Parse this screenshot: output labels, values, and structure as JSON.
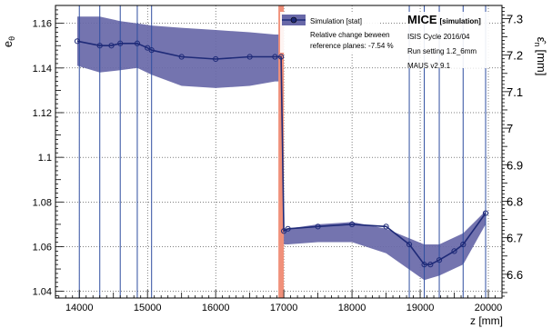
{
  "chart_data": {
    "type": "line",
    "xlabel": "z [mm]",
    "ylabel_left": "e_θ",
    "ylabel_left_parts": [
      "e",
      "θ"
    ],
    "ylabel_right": "ε̂_n [mm]",
    "ylabel_right_parts": [
      "ε̂",
      "n",
      "[mm]"
    ],
    "xlim": [
      13650,
      20200
    ],
    "ylim": [
      1.037,
      1.168
    ],
    "ylim_right": [
      6.535,
      7.336
    ],
    "x_ticks": [
      14000,
      15000,
      16000,
      17000,
      18000,
      19000,
      20000
    ],
    "x_tick_labels": [
      "14000",
      "15000",
      "16000",
      "17000",
      "18000",
      "19000",
      "20000"
    ],
    "y_ticks": [
      1.04,
      1.06,
      1.08,
      1.1,
      1.12,
      1.14,
      1.16
    ],
    "y_tick_labels": [
      "1.04",
      "1.06",
      "1.08",
      "1.1",
      "1.12",
      "1.14",
      "1.16"
    ],
    "y2_ticks": [
      6.6,
      6.7,
      6.8,
      6.9,
      7.0,
      7.1,
      7.2,
      7.3
    ],
    "y2_tick_labels": [
      "6.6",
      "6.7",
      "6.8",
      "6.9",
      "7",
      "7.1",
      "7.2",
      "7.3"
    ],
    "grid": true,
    "detector_planes": [
      14000,
      14300,
      14600,
      14850,
      15060,
      18840,
      19060,
      19280,
      19630,
      19960
    ],
    "absorber": {
      "z": 16960,
      "color": "#f0907a"
    },
    "band": {
      "color": "#6868a8",
      "x": [
        13970,
        14300,
        14600,
        14850,
        15060,
        15500,
        16000,
        16500,
        16870,
        16960,
        17000,
        17060,
        17500,
        18000,
        18500,
        19060,
        19280,
        19630,
        19960
      ],
      "upper": [
        1.163,
        1.163,
        1.161,
        1.16,
        1.159,
        1.158,
        1.157,
        1.156,
        1.155,
        1.155,
        1.068,
        1.068,
        1.07,
        1.071,
        1.068,
        1.061,
        1.061,
        1.066,
        1.076
      ],
      "lower": [
        1.141,
        1.138,
        1.139,
        1.14,
        1.137,
        1.132,
        1.131,
        1.132,
        1.134,
        1.134,
        1.061,
        1.061,
        1.062,
        1.062,
        1.057,
        1.045,
        1.047,
        1.052,
        1.07
      ]
    },
    "series": [
      {
        "name": "Simulation [stat]",
        "color": "#1e2a78",
        "x": [
          13970,
          14300,
          14470,
          14600,
          14850,
          15000,
          15060,
          15500,
          16000,
          16500,
          16870,
          16960,
          17000,
          17060,
          17500,
          18000,
          18500,
          18840,
          19060,
          19150,
          19280,
          19500,
          19630,
          19960
        ],
        "y": [
          1.152,
          1.15,
          1.15,
          1.151,
          1.151,
          1.149,
          1.148,
          1.145,
          1.144,
          1.145,
          1.145,
          1.145,
          1.067,
          1.068,
          1.069,
          1.07,
          1.069,
          1.061,
          1.052,
          1.052,
          1.054,
          1.058,
          1.061,
          1.075
        ]
      }
    ],
    "legend": {
      "placement": "top-center",
      "entry": "Simulation [stat]",
      "text_lines": [
        "Relative change beween",
        "reference planes: -7.54 %"
      ]
    },
    "annotations": {
      "experiment": "MICE",
      "experiment_suffix": "[simulation]",
      "lines": [
        "ISIS Cycle 2016/04",
        "Run setting 1.2_6mm",
        "MAUS v2.9.1"
      ]
    }
  }
}
